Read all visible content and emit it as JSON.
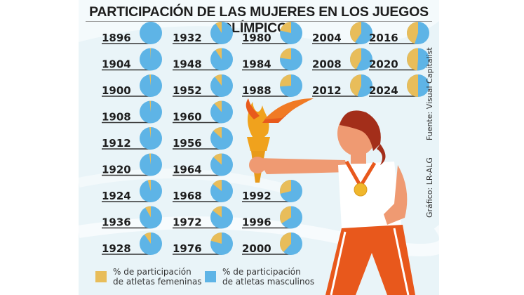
{
  "title": "PARTICIPACIÓN DE LAS MUJERES EN LOS JUEGOS OLÍMPICOS",
  "source": "Fuente: Visual Capitalist",
  "credit": "Gráfico: LR-ALG",
  "colors": {
    "female": "#e8bd5a",
    "male": "#5eb4e6",
    "background": "#e9f4f8"
  },
  "chart_data": {
    "type": "pie",
    "title": "PARTICIPACIÓN DE LAS MUJERES EN LOS JUEGOS OLÍMPICOS",
    "legend": [
      "% de participación de atletas femeninas",
      "% de participación de atletas masculinos"
    ],
    "legend_placement": "bottom-left",
    "columns": [
      [
        {
          "year": "1896",
          "female": 0
        },
        {
          "year": "1904",
          "female": 0.9
        },
        {
          "year": "1900",
          "female": 2.2
        },
        {
          "year": "1908",
          "female": 1.8
        },
        {
          "year": "1912",
          "female": 2.0
        },
        {
          "year": "1920",
          "female": 2.4
        },
        {
          "year": "1924",
          "female": 4.4
        },
        {
          "year": "1936",
          "female": 8.3
        },
        {
          "year": "1928",
          "female": 9.6
        }
      ],
      [
        {
          "year": "1932",
          "female": 9.0
        },
        {
          "year": "1948",
          "female": 9.5
        },
        {
          "year": "1952",
          "female": 10.5
        },
        {
          "year": "1960",
          "female": 11.4
        },
        {
          "year": "1956",
          "female": 13.3
        },
        {
          "year": "1964",
          "female": 13.2
        },
        {
          "year": "1968",
          "female": 14.2
        },
        {
          "year": "1972",
          "female": 14.6
        },
        {
          "year": "1976",
          "female": 20.7
        }
      ],
      [
        {
          "year": "1980",
          "female": 21.5
        },
        {
          "year": "1984",
          "female": 23.0
        },
        {
          "year": "1988",
          "female": 26.1
        },
        null,
        null,
        null,
        {
          "year": "1992",
          "female": 28.9
        },
        {
          "year": "1996",
          "female": 34.0
        },
        {
          "year": "2000",
          "female": 38.2
        }
      ],
      [
        {
          "year": "2004",
          "female": 40.7
        },
        {
          "year": "2008",
          "female": 42.4
        },
        {
          "year": "2012",
          "female": 44.2
        }
      ],
      [
        {
          "year": "2016",
          "female": 45.0
        },
        {
          "year": "2020",
          "female": 48.8
        },
        {
          "year": "2024",
          "female": 50.0
        }
      ]
    ]
  },
  "legend": {
    "female": {
      "line1": "% de participación",
      "line2": "de atletas femeninas"
    },
    "male": {
      "line1": "% de participación",
      "line2": "de atletas masculinos"
    }
  }
}
